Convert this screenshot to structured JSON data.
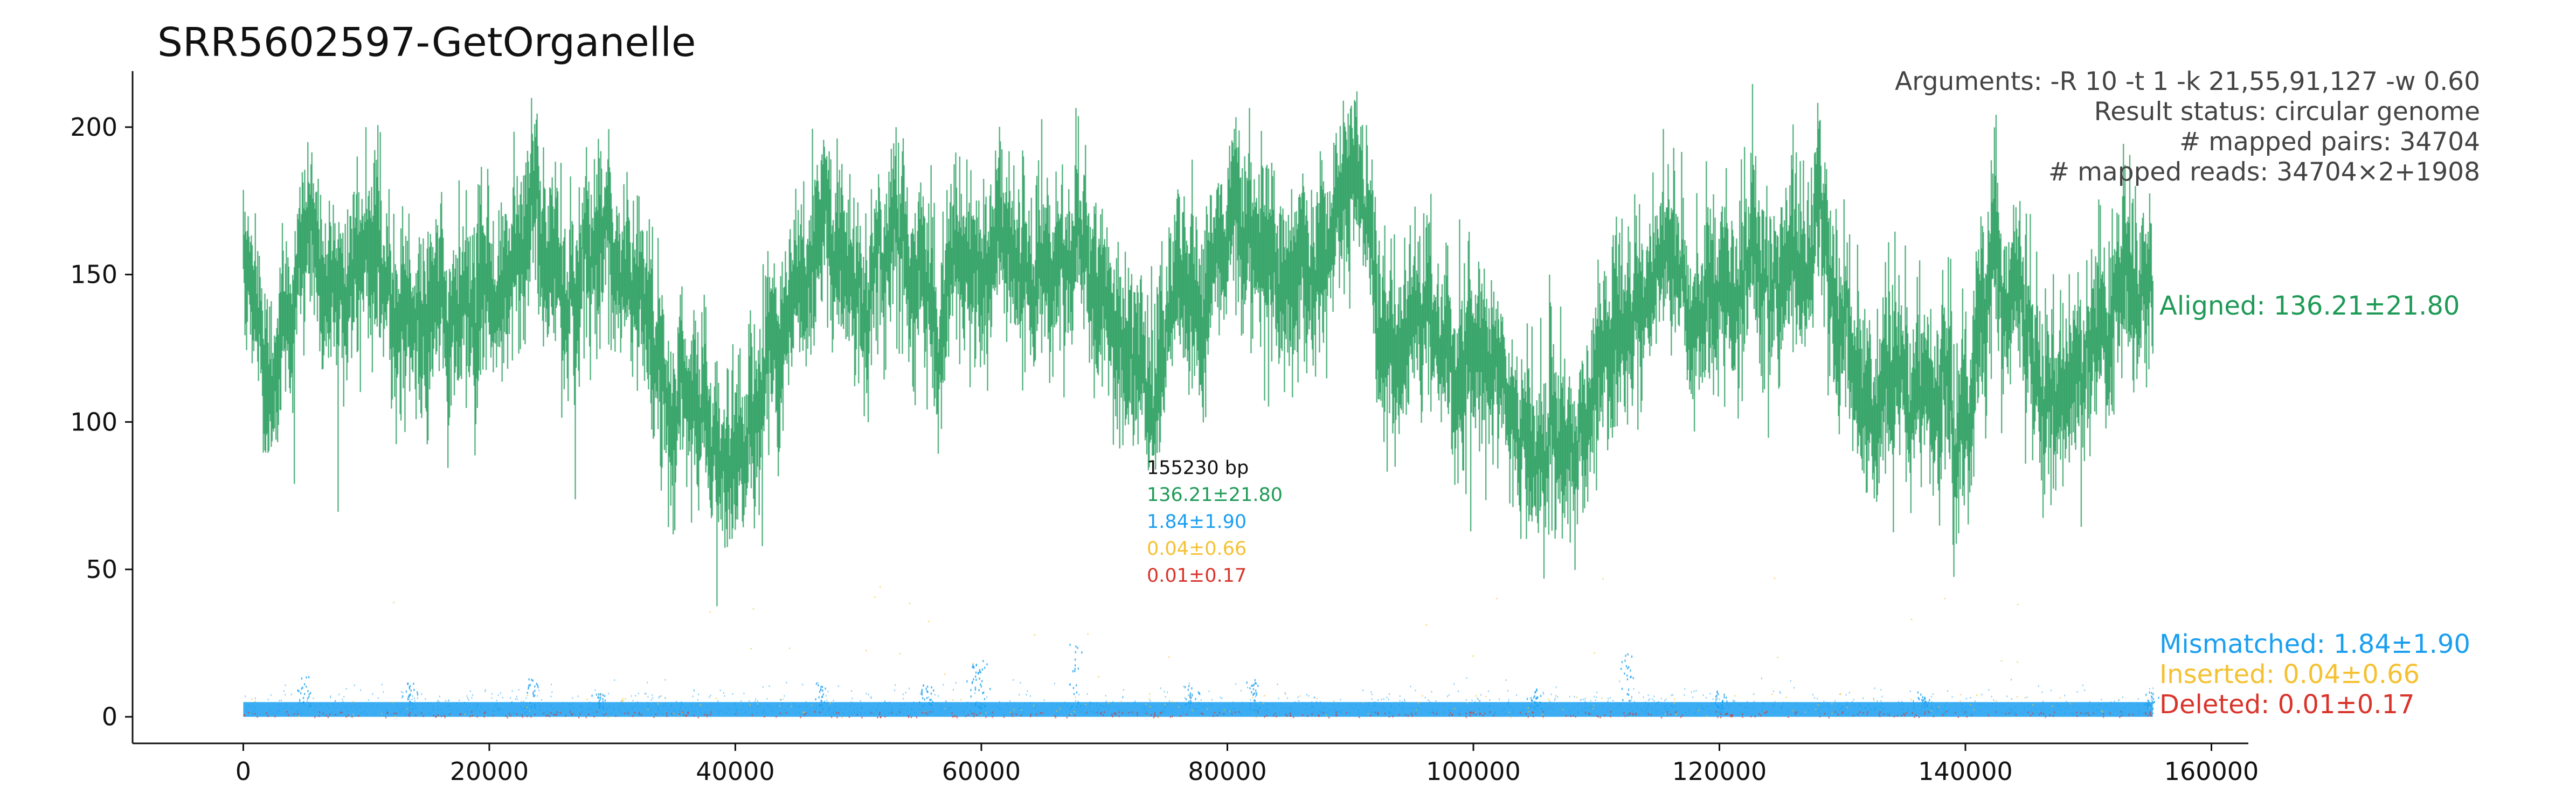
{
  "title": "SRR5602597-GetOrganelle",
  "info_lines": [
    "Arguments: -R 10 -t 1 -k 21,55,91,127 -w 0.60",
    "Result status: circular genome",
    "# mapped pairs: 34704",
    "# mapped reads: 34704×2+1908"
  ],
  "center_stats": {
    "length": "155230 bp",
    "aligned": "136.21±21.80",
    "mismatched": "1.84±1.90",
    "inserted": "0.04±0.66",
    "deleted": "0.01±0.17"
  },
  "legend": {
    "aligned": "Aligned: 136.21±21.80",
    "mismatched": "Mismatched: 1.84±1.90",
    "inserted": "Inserted: 0.04±0.66",
    "deleted": "Deleted: 0.01±0.17"
  },
  "colors": {
    "aligned": "#1f9a57",
    "mismatched": "#1a9ff0",
    "inserted": "#f5c132",
    "deleted": "#d9342b",
    "axis": "#111111"
  },
  "chart_data": {
    "type": "scatter",
    "title": "SRR5602597-GetOrganelle",
    "xlabel": "",
    "ylabel": "",
    "xlim": [
      -9000,
      163000
    ],
    "ylim": [
      -9,
      219
    ],
    "x_ticks": [
      0,
      20000,
      40000,
      60000,
      80000,
      100000,
      120000,
      140000,
      160000
    ],
    "x_tick_labels": [
      "0",
      "20000",
      "40000",
      "60000",
      "80000",
      "100000",
      "120000",
      "140000",
      "160000"
    ],
    "y_ticks": [
      0,
      50,
      100,
      150,
      200
    ],
    "y_tick_labels": [
      "0",
      "50",
      "100",
      "150",
      "200"
    ],
    "grid": false,
    "genome_length": 155230,
    "series": [
      {
        "name": "Aligned",
        "mean": 136.21,
        "sd": 21.8,
        "x": [
          0,
          2000,
          4000,
          5000,
          6000,
          8000,
          10000,
          12000,
          14000,
          16000,
          18000,
          20000,
          22000,
          23500,
          25000,
          27000,
          29000,
          31000,
          33000,
          34500,
          36000,
          38000,
          39500,
          41000,
          43000,
          45000,
          47500,
          50000,
          52000,
          54000,
          56000,
          58000,
          60000,
          62000,
          64000,
          66000,
          68000,
          70000,
          72000,
          74000,
          76000,
          78000,
          80000,
          82000,
          84000,
          86000,
          88000,
          90000,
          92000,
          94000,
          96000,
          98000,
          100000,
          102000,
          104000,
          106000,
          108000,
          110000,
          112000,
          114000,
          116000,
          118000,
          120000,
          122000,
          124000,
          126000,
          128000,
          130000,
          132000,
          134000,
          136000,
          138000,
          139000,
          140000,
          142000,
          144000,
          146000,
          148000,
          150000,
          152000,
          154000,
          155230
        ],
        "y": [
          150,
          120,
          140,
          170,
          150,
          145,
          155,
          148,
          140,
          145,
          130,
          140,
          150,
          175,
          140,
          150,
          160,
          148,
          150,
          100,
          115,
          105,
          85,
          100,
          110,
          150,
          170,
          150,
          155,
          160,
          140,
          155,
          155,
          165,
          140,
          145,
          155,
          135,
          130,
          110,
          150,
          140,
          165,
          160,
          145,
          150,
          165,
          185,
          155,
          125,
          140,
          120,
          125,
          115,
          105,
          95,
          85,
          115,
          140,
          150,
          145,
          140,
          150,
          155,
          150,
          145,
          160,
          130,
          105,
          115,
          110,
          100,
          85,
          110,
          150,
          155,
          115,
          105,
          125,
          140,
          160,
          150
        ]
      },
      {
        "name": "Mismatched",
        "mean": 1.84,
        "sd": 1.9,
        "baseline": [
          0,
          5
        ],
        "peaks": [
          {
            "x": 5000,
            "y": 14
          },
          {
            "x": 13500,
            "y": 12
          },
          {
            "x": 23500,
            "y": 14
          },
          {
            "x": 29000,
            "y": 9
          },
          {
            "x": 47000,
            "y": 12
          },
          {
            "x": 55500,
            "y": 11
          },
          {
            "x": 59500,
            "y": 18
          },
          {
            "x": 60000,
            "y": 20
          },
          {
            "x": 67500,
            "y": 25
          },
          {
            "x": 77000,
            "y": 12
          },
          {
            "x": 82000,
            "y": 13
          },
          {
            "x": 105000,
            "y": 10
          },
          {
            "x": 112500,
            "y": 22
          },
          {
            "x": 120000,
            "y": 9
          },
          {
            "x": 136500,
            "y": 9
          },
          {
            "x": 155000,
            "y": 9
          }
        ]
      },
      {
        "name": "Inserted",
        "mean": 0.04,
        "sd": 0.66
      },
      {
        "name": "Deleted",
        "mean": 0.01,
        "sd": 0.17
      }
    ]
  }
}
